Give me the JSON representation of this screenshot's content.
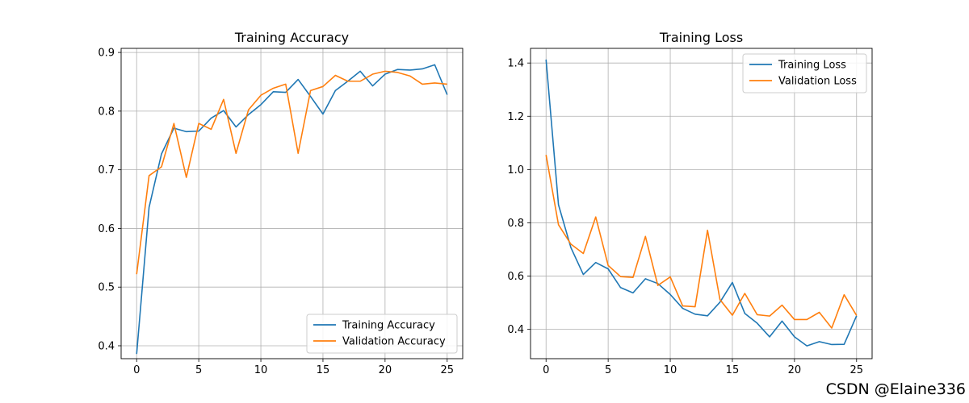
{
  "watermark": "CSDN @Elaine336",
  "chart_data": [
    {
      "type": "line",
      "title": "Training Accuracy",
      "xlabel": "",
      "ylabel": "",
      "x": [
        0,
        1,
        2,
        3,
        4,
        5,
        6,
        7,
        8,
        9,
        10,
        11,
        12,
        13,
        14,
        15,
        16,
        17,
        18,
        19,
        20,
        21,
        22,
        23,
        24,
        25
      ],
      "xlim": [
        -1.25,
        26.25
      ],
      "ylim": [
        0.378,
        0.907
      ],
      "xticks": [
        0,
        5,
        10,
        15,
        20,
        25
      ],
      "xtick_labels": [
        "0",
        "5",
        "10",
        "15",
        "20",
        "25"
      ],
      "yticks": [
        0.4,
        0.5,
        0.6,
        0.7,
        0.8,
        0.9
      ],
      "ytick_labels": [
        "0.4",
        "0.5",
        "0.6",
        "0.7",
        "0.8",
        "0.9"
      ],
      "grid": true,
      "legend_position": "lower-right",
      "series": [
        {
          "name": "Training Accuracy",
          "color": "#1f77b4",
          "values": [
            0.386,
            0.636,
            0.727,
            0.771,
            0.765,
            0.766,
            0.788,
            0.801,
            0.773,
            0.794,
            0.811,
            0.833,
            0.832,
            0.854,
            0.825,
            0.795,
            0.835,
            0.851,
            0.868,
            0.843,
            0.863,
            0.871,
            0.87,
            0.872,
            0.879,
            0.828
          ]
        },
        {
          "name": "Validation Accuracy",
          "color": "#ff7f0e",
          "values": [
            0.522,
            0.69,
            0.705,
            0.779,
            0.687,
            0.779,
            0.769,
            0.82,
            0.728,
            0.802,
            0.827,
            0.839,
            0.846,
            0.728,
            0.835,
            0.842,
            0.861,
            0.851,
            0.851,
            0.863,
            0.868,
            0.866,
            0.86,
            0.846,
            0.848,
            0.846
          ]
        }
      ]
    },
    {
      "type": "line",
      "title": "Training Loss",
      "xlabel": "",
      "ylabel": "",
      "x": [
        0,
        1,
        2,
        3,
        4,
        5,
        6,
        7,
        8,
        9,
        10,
        11,
        12,
        13,
        14,
        15,
        16,
        17,
        18,
        19,
        20,
        21,
        22,
        23,
        24,
        25
      ],
      "xlim": [
        -1.25,
        26.25
      ],
      "ylim": [
        0.29,
        1.455
      ],
      "xticks": [
        0,
        5,
        10,
        15,
        20,
        25
      ],
      "xtick_labels": [
        "0",
        "5",
        "10",
        "15",
        "20",
        "25"
      ],
      "yticks": [
        0.4,
        0.6,
        0.8,
        1.0,
        1.2,
        1.4
      ],
      "ytick_labels": [
        "0.4",
        "0.6",
        "0.8",
        "1.0",
        "1.2",
        "1.4"
      ],
      "grid": true,
      "legend_position": "upper-right",
      "series": [
        {
          "name": "Training Loss",
          "color": "#1f77b4",
          "values": [
            1.413,
            0.868,
            0.707,
            0.606,
            0.651,
            0.627,
            0.557,
            0.537,
            0.59,
            0.572,
            0.531,
            0.479,
            0.457,
            0.451,
            0.502,
            0.576,
            0.46,
            0.423,
            0.372,
            0.431,
            0.372,
            0.338,
            0.354,
            0.343,
            0.344,
            0.451
          ]
        },
        {
          "name": "Validation Loss",
          "color": "#ff7f0e",
          "values": [
            1.055,
            0.793,
            0.72,
            0.685,
            0.822,
            0.64,
            0.598,
            0.595,
            0.749,
            0.565,
            0.597,
            0.488,
            0.485,
            0.772,
            0.512,
            0.453,
            0.535,
            0.455,
            0.45,
            0.491,
            0.437,
            0.437,
            0.464,
            0.405,
            0.53,
            0.452
          ]
        }
      ]
    }
  ]
}
